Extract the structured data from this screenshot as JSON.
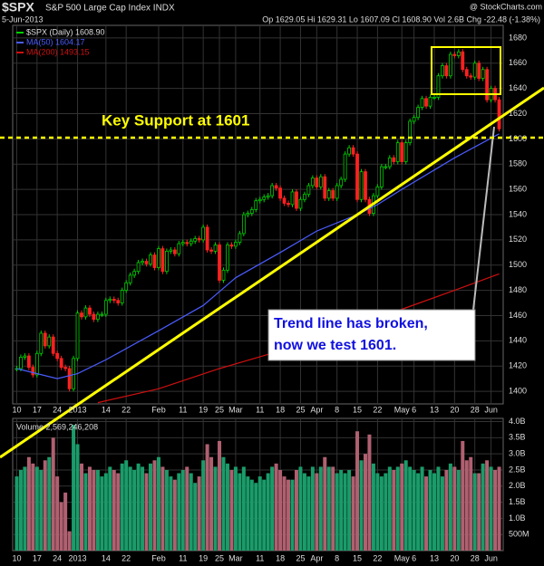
{
  "header": {
    "symbol": "$SPX",
    "name": "S&P 500 Large Cap Index INDX",
    "source": "@ StockCharts.com",
    "date": "5-Jun-2013",
    "quote": "Op 1629.05  Hi 1629.31  Lo 1607.09  Cl 1608.90  Vol 2.6B  Chg -22.48 (-1.38%)"
  },
  "chart_data": [
    {
      "type": "line",
      "legend": [
        "$SPX (Daily) 1608.90",
        "MA(50) 1604.17",
        "MA(200) 1493.15"
      ],
      "annotations": {
        "support_label": "Key Support at 1601",
        "support_value": 1601,
        "callout": [
          "Trend line has broken,",
          "now we test 1601."
        ]
      },
      "xlim": [
        -1,
        120
      ],
      "ylim": [
        1390,
        1690
      ],
      "xticks": [
        {
          "value": 0,
          "label": "10"
        },
        {
          "value": 5,
          "label": "17"
        },
        {
          "value": 10,
          "label": "24"
        },
        {
          "value": 15,
          "label": "2013"
        },
        {
          "value": 22,
          "label": "14"
        },
        {
          "value": 27,
          "label": "22"
        },
        {
          "value": 35,
          "label": "Feb"
        },
        {
          "value": 41,
          "label": "11"
        },
        {
          "value": 46,
          "label": "19"
        },
        {
          "value": 50,
          "label": "25"
        },
        {
          "value": 54,
          "label": "Mar"
        },
        {
          "value": 60,
          "label": "11"
        },
        {
          "value": 65,
          "label": "18"
        },
        {
          "value": 70,
          "label": "25"
        },
        {
          "value": 74,
          "label": "Apr"
        },
        {
          "value": 79,
          "label": "8"
        },
        {
          "value": 84,
          "label": "15"
        },
        {
          "value": 89,
          "label": "22"
        },
        {
          "value": 95,
          "label": "May"
        },
        {
          "value": 98,
          "label": "6"
        },
        {
          "value": 103,
          "label": "13"
        },
        {
          "value": 108,
          "label": "20"
        },
        {
          "value": 113,
          "label": "28"
        },
        {
          "value": 117,
          "label": "Jun"
        }
      ],
      "yticks": [
        1400,
        1420,
        1440,
        1460,
        1480,
        1500,
        1520,
        1540,
        1560,
        1580,
        1600,
        1620,
        1640,
        1660,
        1680
      ],
      "series": [
        {
          "name": "$SPX",
          "color": "#00d000",
          "down_color": "#ff2020",
          "values": [
            1418,
            1427,
            1428,
            1419,
            1413,
            1430,
            1446,
            1436,
            1443,
            1430,
            1426,
            1419,
            1418,
            1402,
            1426,
            1462,
            1459,
            1466,
            1461,
            1457,
            1461,
            1461,
            1472,
            1473,
            1472,
            1470,
            1480,
            1486,
            1492,
            1495,
            1502,
            1503,
            1501,
            1508,
            1498,
            1513,
            1495,
            1511,
            1512,
            1509,
            1517,
            1518,
            1517,
            1519,
            1521,
            1520,
            1530,
            1512,
            1511,
            1516,
            1488,
            1496,
            1516,
            1515,
            1518,
            1525,
            1540,
            1541,
            1544,
            1551,
            1552,
            1554,
            1555,
            1563,
            1561,
            1553,
            1549,
            1548,
            1558,
            1545,
            1552,
            1556,
            1563,
            1569,
            1562,
            1570,
            1553,
            1559,
            1553,
            1563,
            1568,
            1588,
            1593,
            1588,
            1552,
            1574,
            1552,
            1541,
            1555,
            1562,
            1578,
            1578,
            1585,
            1582,
            1597,
            1582,
            1597,
            1614,
            1617,
            1625,
            1632,
            1626,
            1633,
            1633,
            1650,
            1658,
            1650,
            1667,
            1666,
            1669,
            1655,
            1650,
            1649,
            1660,
            1648,
            1655,
            1631,
            1640,
            1631,
            1608
          ]
        },
        {
          "name": "MA(50)",
          "color": "#4a5cff",
          "x": [
            0,
            10,
            15,
            22,
            35,
            46,
            54,
            65,
            74,
            84,
            89,
            95,
            108,
            119
          ],
          "values": [
            1418,
            1410,
            1414,
            1425,
            1448,
            1468,
            1490,
            1510,
            1527,
            1540,
            1548,
            1560,
            1585,
            1604
          ]
        },
        {
          "name": "MA(200)",
          "color": "#d01010",
          "x": [
            20,
            35,
            50,
            65,
            80,
            95,
            108,
            119
          ],
          "values": [
            1391,
            1402,
            1418,
            1432,
            1448,
            1465,
            1480,
            1493
          ]
        }
      ]
    },
    {
      "type": "bar",
      "label": "Volume 2,569,246,208",
      "ylim": [
        0,
        4.1
      ],
      "yticks": [
        {
          "value": 0.5,
          "label": "500M"
        },
        {
          "value": 1,
          "label": "1.0B"
        },
        {
          "value": 1.5,
          "label": "1.5B"
        },
        {
          "value": 2,
          "label": "2.0B"
        },
        {
          "value": 2.5,
          "label": "2.5B"
        },
        {
          "value": 3,
          "label": "3.0B"
        },
        {
          "value": 3.5,
          "label": "3.5B"
        },
        {
          "value": 4,
          "label": "4.0B"
        }
      ],
      "up_color": "#1a9c6a",
      "down_color": "#b06070",
      "values": [
        2.3,
        2.5,
        2.6,
        2.9,
        2.7,
        2.6,
        2.5,
        2.8,
        2.9,
        3.5,
        2.3,
        1.5,
        1.8,
        0.6,
        3.9,
        3.3,
        2.7,
        2.4,
        2.6,
        2.5,
        2.5,
        2.3,
        2.4,
        2.6,
        2.5,
        2.4,
        2.7,
        2.8,
        2.6,
        2.5,
        2.7,
        2.6,
        2.4,
        2.7,
        2.8,
        2.9,
        2.6,
        2.5,
        2.3,
        2.2,
        2.4,
        2.5,
        2.6,
        2.4,
        2.1,
        2.3,
        2.8,
        3.3,
        2.9,
        2.6,
        3.4,
        2.9,
        2.7,
        2.5,
        2.6,
        2.4,
        2.6,
        2.3,
        2.2,
        2.1,
        2.3,
        2.2,
        2.4,
        2.6,
        2.7,
        2.5,
        2.3,
        2.2,
        2.2,
        2.5,
        2.6,
        2.4,
        2.3,
        2.6,
        2.4,
        2.6,
        2.9,
        2.6,
        2.6,
        2.4,
        2.5,
        2.4,
        2.5,
        2.3,
        3.7,
        2.8,
        3.0,
        3.6,
        2.7,
        2.4,
        2.3,
        2.4,
        2.6,
        2.5,
        2.6,
        2.7,
        2.8,
        2.6,
        2.5,
        2.4,
        2.6,
        2.3,
        2.5,
        2.4,
        2.6,
        2.3,
        2.5,
        2.7,
        2.6,
        2.5,
        3.4,
        2.8,
        2.9,
        2.4,
        2.4,
        2.7,
        2.8,
        2.6,
        2.5,
        2.6
      ]
    }
  ]
}
